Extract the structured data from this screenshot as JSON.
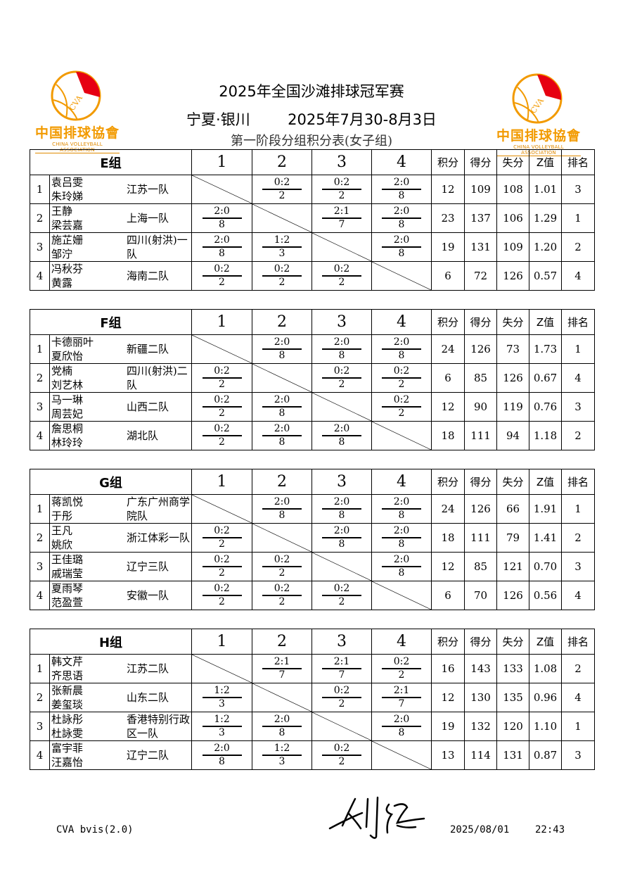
{
  "header": {
    "title": "2025年全国沙滩排球冠军赛",
    "location": "宁夏·银川",
    "dates": "2025年7月30-8月3日",
    "subtitle": "第一阶段分组积分表(女子组)"
  },
  "logo": {
    "cn": "中国排球協會",
    "en": "CHINA VOLLEYBALL ASSOCIATION",
    "mark": "CVA",
    "colors": {
      "gold": "#f29a00",
      "red": "#e60012"
    }
  },
  "columns": {
    "opponents": [
      "1",
      "2",
      "3",
      "4"
    ],
    "points": "积分",
    "won": "得分",
    "lost": "失分",
    "z": "Z值",
    "rank": "排名"
  },
  "groups": [
    {
      "name": "E组",
      "rows": [
        {
          "no": "1",
          "p1": "袁吕雯",
          "p2": "朱玲娣",
          "team": "江苏一队",
          "scores": [
            null,
            [
              "0:2",
              "2"
            ],
            [
              "0:2",
              "2"
            ],
            [
              "2:0",
              "8"
            ]
          ],
          "points": "12",
          "won": "109",
          "lost": "108",
          "z": "1.01",
          "rank": "3"
        },
        {
          "no": "2",
          "p1": "王静",
          "p2": "梁芸嘉",
          "team": "上海一队",
          "scores": [
            [
              "2:0",
              "8"
            ],
            null,
            [
              "2:1",
              "7"
            ],
            [
              "2:0",
              "8"
            ]
          ],
          "points": "23",
          "won": "137",
          "lost": "106",
          "z": "1.29",
          "rank": "1"
        },
        {
          "no": "3",
          "p1": "施芷姗",
          "p2": "邹泞",
          "team": "四川(射洪)一队",
          "scores": [
            [
              "2:0",
              "8"
            ],
            [
              "1:2",
              "3"
            ],
            null,
            [
              "2:0",
              "8"
            ]
          ],
          "points": "19",
          "won": "131",
          "lost": "109",
          "z": "1.20",
          "rank": "2"
        },
        {
          "no": "4",
          "p1": "冯秋芬",
          "p2": "黄露",
          "team": "海南二队",
          "scores": [
            [
              "0:2",
              "2"
            ],
            [
              "0:2",
              "2"
            ],
            [
              "0:2",
              "2"
            ],
            null
          ],
          "points": "6",
          "won": "72",
          "lost": "126",
          "z": "0.57",
          "rank": "4"
        }
      ]
    },
    {
      "name": "F组",
      "rows": [
        {
          "no": "1",
          "p1": "卡德丽叶",
          "p2": "夏欣怡",
          "team": "新疆二队",
          "scores": [
            null,
            [
              "2:0",
              "8"
            ],
            [
              "2:0",
              "8"
            ],
            [
              "2:0",
              "8"
            ]
          ],
          "points": "24",
          "won": "126",
          "lost": "73",
          "z": "1.73",
          "rank": "1"
        },
        {
          "no": "2",
          "p1": "党楠",
          "p2": "刘艺林",
          "team": "四川(射洪)二队",
          "scores": [
            [
              "0:2",
              "2"
            ],
            null,
            [
              "0:2",
              "2"
            ],
            [
              "0:2",
              "2"
            ]
          ],
          "points": "6",
          "won": "85",
          "lost": "126",
          "z": "0.67",
          "rank": "4"
        },
        {
          "no": "3",
          "p1": "马一琳",
          "p2": "周芸妃",
          "team": "山西二队",
          "scores": [
            [
              "0:2",
              "2"
            ],
            [
              "2:0",
              "8"
            ],
            null,
            [
              "0:2",
              "2"
            ]
          ],
          "points": "12",
          "won": "90",
          "lost": "119",
          "z": "0.76",
          "rank": "3"
        },
        {
          "no": "4",
          "p1": "詹思桐",
          "p2": "林玲玲",
          "team": "湖北队",
          "scores": [
            [
              "0:2",
              "2"
            ],
            [
              "2:0",
              "8"
            ],
            [
              "2:0",
              "8"
            ],
            null
          ],
          "points": "18",
          "won": "111",
          "lost": "94",
          "z": "1.18",
          "rank": "2"
        }
      ]
    },
    {
      "name": "G组",
      "rows": [
        {
          "no": "1",
          "p1": "蒋凯悦",
          "p2": "于彤",
          "team": "广东广州商学院队",
          "scores": [
            null,
            [
              "2:0",
              "8"
            ],
            [
              "2:0",
              "8"
            ],
            [
              "2:0",
              "8"
            ]
          ],
          "points": "24",
          "won": "126",
          "lost": "66",
          "z": "1.91",
          "rank": "1"
        },
        {
          "no": "2",
          "p1": "王凡",
          "p2": "姚欣",
          "team": "浙江体彩一队",
          "scores": [
            [
              "0:2",
              "2"
            ],
            null,
            [
              "2:0",
              "8"
            ],
            [
              "2:0",
              "8"
            ]
          ],
          "points": "18",
          "won": "111",
          "lost": "79",
          "z": "1.41",
          "rank": "2"
        },
        {
          "no": "3",
          "p1": "王佳璐",
          "p2": "戚瑞莹",
          "team": "辽宁三队",
          "scores": [
            [
              "0:2",
              "2"
            ],
            [
              "0:2",
              "2"
            ],
            null,
            [
              "2:0",
              "8"
            ]
          ],
          "points": "12",
          "won": "85",
          "lost": "121",
          "z": "0.70",
          "rank": "3"
        },
        {
          "no": "4",
          "p1": "夏雨琴",
          "p2": "范盈萱",
          "team": "安徽一队",
          "scores": [
            [
              "0:2",
              "2"
            ],
            [
              "0:2",
              "2"
            ],
            [
              "0:2",
              "2"
            ],
            null
          ],
          "points": "6",
          "won": "70",
          "lost": "126",
          "z": "0.56",
          "rank": "4"
        }
      ]
    },
    {
      "name": "H组",
      "rows": [
        {
          "no": "1",
          "p1": "韩文芹",
          "p2": "齐思语",
          "team": "江苏二队",
          "scores": [
            null,
            [
              "2:1",
              "7"
            ],
            [
              "2:1",
              "7"
            ],
            [
              "0:2",
              "2"
            ]
          ],
          "points": "16",
          "won": "143",
          "lost": "133",
          "z": "1.08",
          "rank": "2"
        },
        {
          "no": "2",
          "p1": "张新晨",
          "p2": "姜玺琰",
          "team": "山东二队",
          "scores": [
            [
              "1:2",
              "3"
            ],
            null,
            [
              "0:2",
              "2"
            ],
            [
              "2:1",
              "7"
            ]
          ],
          "points": "12",
          "won": "130",
          "lost": "135",
          "z": "0.96",
          "rank": "4"
        },
        {
          "no": "3",
          "p1": "杜詠彤",
          "p2": "杜詠雯",
          "team": "香港特别行政区一队",
          "scores": [
            [
              "1:2",
              "3"
            ],
            [
              "2:0",
              "8"
            ],
            null,
            [
              "2:0",
              "8"
            ]
          ],
          "points": "19",
          "won": "132",
          "lost": "120",
          "z": "1.10",
          "rank": "1"
        },
        {
          "no": "4",
          "p1": "富宇菲",
          "p2": "汪嘉怡",
          "team": "辽宁二队",
          "scores": [
            [
              "2:0",
              "8"
            ],
            [
              "1:2",
              "3"
            ],
            [
              "0:2",
              "2"
            ],
            null
          ],
          "points": "13",
          "won": "114",
          "lost": "131",
          "z": "0.87",
          "rank": "3"
        }
      ]
    }
  ],
  "footer": {
    "software": "CVA bvis(2.0)",
    "date": "2025/08/01",
    "time": "22:43"
  }
}
